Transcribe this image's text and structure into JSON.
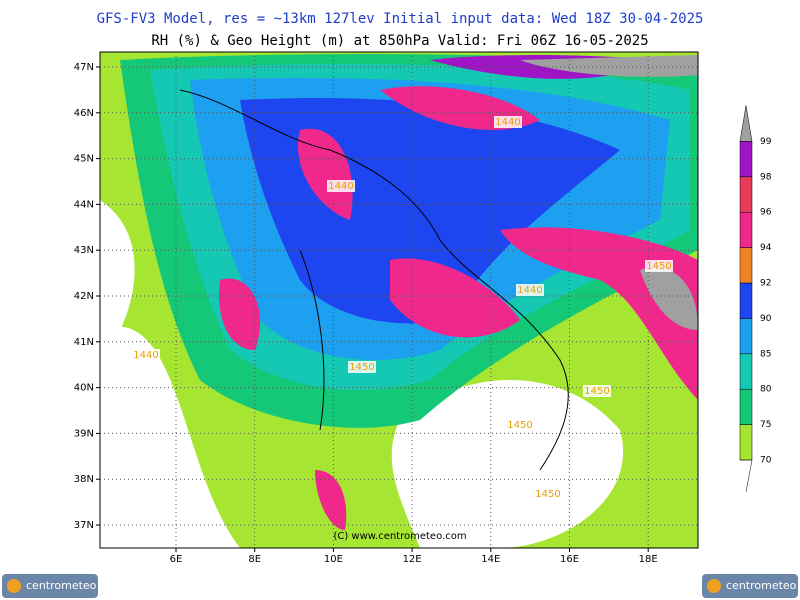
{
  "header": {
    "title": "GFS-FV3 Model, res = ~13km 127lev   Initial input data: Wed 18Z 30-04-2025",
    "subtitle": "RH (%) & Geo Height (m) at 850hPa  Valid: Fri 06Z 16-05-2025"
  },
  "map": {
    "lat_labels": [
      "47N",
      "46N",
      "45N",
      "44N",
      "43N",
      "42N",
      "41N",
      "40N",
      "39N",
      "38N",
      "37N"
    ],
    "lon_labels": [
      "6E",
      "8E",
      "10E",
      "12E",
      "14E",
      "16E",
      "18E"
    ],
    "contour_labels": [
      "1440",
      "1440",
      "1440",
      "1450",
      "1440",
      "1450",
      "1450",
      "1450",
      "1450"
    ],
    "copyright": "(C) www.centrometeo.com"
  },
  "colorbar": {
    "levels": [
      70,
      75,
      80,
      85,
      90,
      92,
      94,
      96,
      98,
      99
    ],
    "colors": [
      "#a6e632",
      "#14c878",
      "#14c8b4",
      "#1ea0f0",
      "#1e46f0",
      "#f08228",
      "#f0288c",
      "#e63c5a",
      "#a014c8"
    ],
    "over_color": "#a0a0a0"
  },
  "logos": [
    "centrometeo",
    "centrometeo"
  ]
}
